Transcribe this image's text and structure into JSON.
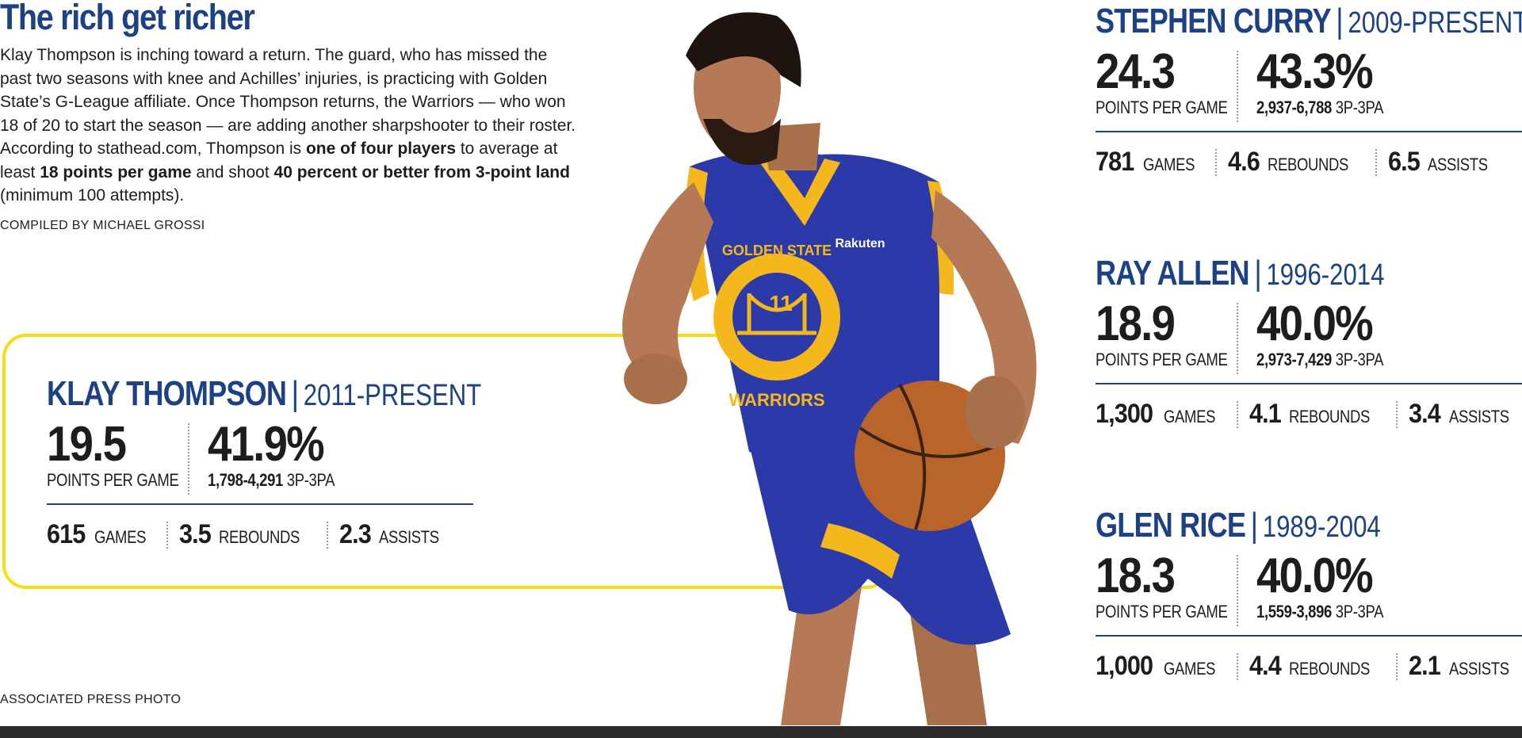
{
  "headline": "The rich get richer",
  "intro": [
    {
      "text": "Klay Thompson is inching toward a return. The guard, who has missed the past two seasons with knee and Achilles’ injuries, is practicing with Golden State’s G-League affiliate. Once Thompson returns, the Warriors — who won 18 of 20 to start the season — are adding another sharpshooter to their roster. According to stathead.com, Thompson is ",
      "bold": false
    },
    {
      "text": "one of four players",
      "bold": true
    },
    {
      "text": " to average at least ",
      "bold": false
    },
    {
      "text": "18 points per game",
      "bold": true
    },
    {
      "text": " and shoot ",
      "bold": false
    },
    {
      "text": "40 percent or better from 3-point land",
      "bold": true
    },
    {
      "text": " (minimum 100 attempts).",
      "bold": false
    }
  ],
  "compiled_by": "COMPILED BY MICHAEL GROSSI",
  "photo_credit": "ASSOCIATED PRESS PHOTO",
  "colors": {
    "accent_blue": "#1c4184",
    "frame_yellow": "#fadc14",
    "jersey_blue": "#2b3aa8",
    "jersey_gold": "#f5b81c"
  },
  "players": [
    {
      "id": "thompson",
      "name": "KLAY THOMPSON",
      "separator": "|",
      "years": "2011-PRESENT",
      "ppg": "19.5",
      "ppg_label": "POINTS PER GAME",
      "pct": "41.9%",
      "made_att": "1,798-4,291",
      "made_att_label": "3P-3PA",
      "games": "615",
      "games_label": "GAMES",
      "rebounds": "3.5",
      "rebounds_label": "REBOUNDS",
      "assists": "2.3",
      "assists_label": "ASSISTS"
    },
    {
      "id": "curry",
      "name": "STEPHEN CURRY",
      "separator": "|",
      "years": "2009-PRESENT",
      "ppg": "24.3",
      "ppg_label": "POINTS PER GAME",
      "pct": "43.3%",
      "made_att": "2,937-6,788",
      "made_att_label": "3P-3PA",
      "games": "781",
      "games_label": "GAMES",
      "rebounds": "4.6",
      "rebounds_label": "REBOUNDS",
      "assists": "6.5",
      "assists_label": "ASSISTS"
    },
    {
      "id": "allen",
      "name": "RAY ALLEN",
      "separator": "|",
      "years": "1996-2014",
      "ppg": "18.9",
      "ppg_label": "POINTS PER GAME",
      "pct": "40.0%",
      "made_att": "2,973-7,429",
      "made_att_label": "3P-3PA",
      "games": "1,300",
      "games_label": "GAMES",
      "rebounds": "4.1",
      "rebounds_label": "REBOUNDS",
      "assists": "3.4",
      "assists_label": "ASSISTS"
    },
    {
      "id": "rice",
      "name": "GLEN RICE",
      "separator": "|",
      "years": "1989-2004",
      "ppg": "18.3",
      "ppg_label": "POINTS PER GAME",
      "pct": "40.0%",
      "made_att": "1,559-3,896",
      "made_att_label": "3P-3PA",
      "games": "1,000",
      "games_label": "GAMES",
      "rebounds": "4.4",
      "rebounds_label": "REBOUNDS",
      "assists": "2.1",
      "assists_label": "ASSISTS"
    }
  ],
  "photo": {
    "jersey_top": "GOLDEN STATE",
    "jersey_number": "11",
    "jersey_bottom": "WARRIORS",
    "sponsor": "Rakuten"
  }
}
